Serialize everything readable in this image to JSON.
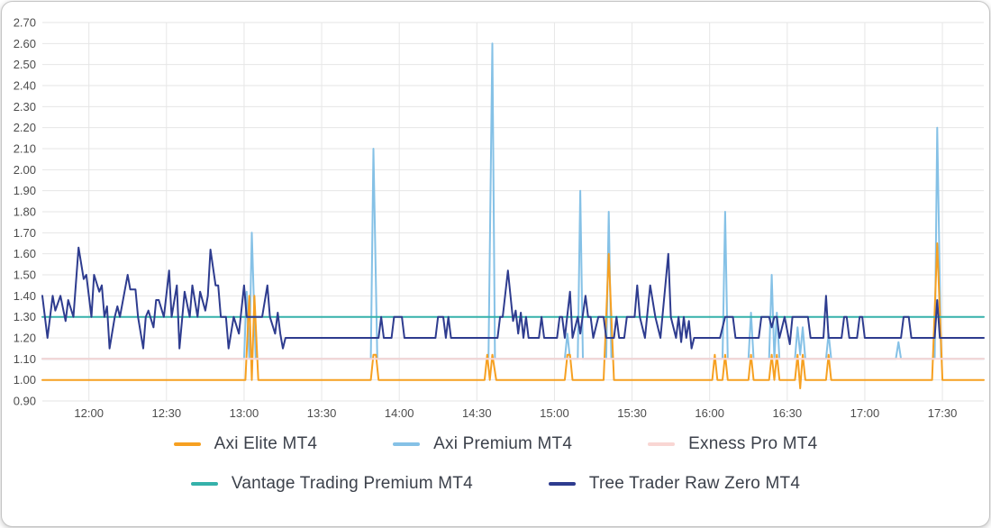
{
  "canvas": {
    "background": "#ffffff",
    "card_border_color": "#c4c4c4",
    "grid_color": "#e6e6e6",
    "tick_text_color": "#4c4c4c",
    "legend_text_color": "#3c414b"
  },
  "chart_data": {
    "type": "line",
    "title": "",
    "xlabel": "",
    "ylabel": "",
    "grid": true,
    "x_axis": {
      "unit": "time of day",
      "domain_minutes": [
        702,
        1066
      ],
      "tick_minutes": [
        720,
        750,
        780,
        810,
        840,
        870,
        900,
        930,
        960,
        990,
        1020,
        1050
      ],
      "tick_labels": [
        "12:00",
        "12:30",
        "13:00",
        "13:30",
        "14:00",
        "14:30",
        "15:00",
        "15:30",
        "16:00",
        "16:30",
        "17:00",
        "17:30"
      ]
    },
    "y_axis": {
      "min": 0.9,
      "max": 2.7,
      "step": 0.1,
      "tick_labels": [
        "0.90",
        "1.00",
        "1.10",
        "1.20",
        "1.30",
        "1.40",
        "1.50",
        "1.60",
        "1.70",
        "1.80",
        "1.90",
        "2.00",
        "2.10",
        "2.20",
        "2.30",
        "2.40",
        "2.50",
        "2.60",
        "2.70"
      ]
    },
    "legend": {
      "position": "bottom",
      "rows": [
        [
          0,
          1,
          2
        ],
        [
          3,
          4
        ]
      ]
    },
    "draw_order": [
      1,
      0,
      2,
      3,
      4
    ],
    "series": [
      {
        "name": "Axi Elite MT4",
        "color": "#f6a021",
        "baseline": 1.0,
        "points": [
          [
            702,
            1.0
          ],
          [
            780.5,
            1.0
          ],
          [
            782,
            1.4
          ],
          [
            783,
            1.0
          ],
          [
            784,
            1.4
          ],
          [
            785.5,
            1.0
          ],
          [
            829,
            1.0
          ],
          [
            830,
            1.12
          ],
          [
            831,
            1.12
          ],
          [
            832,
            1.0
          ],
          [
            873,
            1.0
          ],
          [
            874,
            1.12
          ],
          [
            875,
            1.0
          ],
          [
            876,
            1.12
          ],
          [
            877.5,
            1.0
          ],
          [
            904,
            1.0
          ],
          [
            905,
            1.12
          ],
          [
            906,
            1.12
          ],
          [
            907,
            1.0
          ],
          [
            919,
            1.0
          ],
          [
            921,
            1.6
          ],
          [
            923,
            1.0
          ],
          [
            961,
            1.0
          ],
          [
            962,
            1.12
          ],
          [
            963,
            1.0
          ],
          [
            965,
            1.0
          ],
          [
            966,
            1.12
          ],
          [
            967,
            1.0
          ],
          [
            975,
            1.0
          ],
          [
            976,
            1.12
          ],
          [
            977,
            1.0
          ],
          [
            983,
            1.0
          ],
          [
            984,
            1.12
          ],
          [
            985,
            1.0
          ],
          [
            986,
            1.12
          ],
          [
            987,
            1.0
          ],
          [
            993,
            1.0
          ],
          [
            994,
            1.12
          ],
          [
            995,
            0.96
          ],
          [
            996,
            1.12
          ],
          [
            997,
            1.0
          ],
          [
            1005,
            1.0
          ],
          [
            1006,
            1.12
          ],
          [
            1007,
            1.0
          ],
          [
            1046,
            1.0
          ],
          [
            1048,
            1.65
          ],
          [
            1050,
            1.0
          ],
          [
            1066,
            1.0
          ]
        ]
      },
      {
        "name": "Axi Premium MT4",
        "color": "#85c1e6",
        "baseline": 1.1,
        "points": [
          [
            702,
            1.1
          ],
          [
            780,
            1.1
          ],
          [
            781,
            1.42
          ],
          [
            782,
            1.1
          ],
          [
            783,
            1.7
          ],
          [
            784.5,
            1.1
          ],
          [
            829,
            1.1
          ],
          [
            830,
            2.1
          ],
          [
            831.5,
            1.1
          ],
          [
            874.5,
            1.1
          ],
          [
            876,
            2.6
          ],
          [
            877,
            1.1
          ],
          [
            904,
            1.1
          ],
          [
            905,
            1.22
          ],
          [
            906,
            1.1
          ],
          [
            909,
            1.1
          ],
          [
            910,
            1.9
          ],
          [
            911,
            1.1
          ],
          [
            920,
            1.1
          ],
          [
            921,
            1.8
          ],
          [
            922,
            1.1
          ],
          [
            965,
            1.1
          ],
          [
            966,
            1.8
          ],
          [
            967,
            1.1
          ],
          [
            975,
            1.1
          ],
          [
            976,
            1.32
          ],
          [
            977,
            1.1
          ],
          [
            983,
            1.1
          ],
          [
            984,
            1.5
          ],
          [
            985,
            1.1
          ],
          [
            986,
            1.32
          ],
          [
            987,
            1.1
          ],
          [
            993,
            1.1
          ],
          [
            994,
            1.25
          ],
          [
            995,
            1.12
          ],
          [
            996,
            1.25
          ],
          [
            997,
            1.1
          ],
          [
            1005,
            1.1
          ],
          [
            1006,
            1.22
          ],
          [
            1007,
            1.1
          ],
          [
            1032,
            1.1
          ],
          [
            1033,
            1.18
          ],
          [
            1034,
            1.1
          ],
          [
            1047,
            1.1
          ],
          [
            1048,
            2.2
          ],
          [
            1049.5,
            1.1
          ],
          [
            1066,
            1.1
          ]
        ]
      },
      {
        "name": "Exness Pro MT4",
        "color": "#f9d6d3",
        "baseline": 1.1,
        "points": [
          [
            702,
            1.1
          ],
          [
            1066,
            1.1
          ]
        ]
      },
      {
        "name": "Vantage Trading Premium MT4",
        "color": "#35b1aa",
        "baseline": 1.3,
        "points": [
          [
            702,
            1.3
          ],
          [
            1066,
            1.3
          ]
        ]
      },
      {
        "name": "Tree Trader Raw Zero MT4",
        "color": "#2e3c8f",
        "baseline": 1.2,
        "points": [
          [
            702,
            1.4
          ],
          [
            704,
            1.2
          ],
          [
            706,
            1.4
          ],
          [
            707,
            1.33
          ],
          [
            709,
            1.4
          ],
          [
            711,
            1.28
          ],
          [
            712,
            1.38
          ],
          [
            714,
            1.3
          ],
          [
            716,
            1.63
          ],
          [
            718,
            1.48
          ],
          [
            719,
            1.5
          ],
          [
            721,
            1.3
          ],
          [
            722,
            1.5
          ],
          [
            724,
            1.42
          ],
          [
            725,
            1.45
          ],
          [
            726,
            1.3
          ],
          [
            727,
            1.35
          ],
          [
            728,
            1.15
          ],
          [
            730,
            1.3
          ],
          [
            731,
            1.35
          ],
          [
            732,
            1.3
          ],
          [
            735,
            1.5
          ],
          [
            736,
            1.43
          ],
          [
            738,
            1.43
          ],
          [
            739,
            1.3
          ],
          [
            741,
            1.15
          ],
          [
            742,
            1.3
          ],
          [
            743,
            1.33
          ],
          [
            745,
            1.25
          ],
          [
            746,
            1.38
          ],
          [
            747,
            1.38
          ],
          [
            749,
            1.3
          ],
          [
            751,
            1.52
          ],
          [
            752,
            1.3
          ],
          [
            754,
            1.45
          ],
          [
            755,
            1.15
          ],
          [
            757,
            1.42
          ],
          [
            759,
            1.3
          ],
          [
            760,
            1.45
          ],
          [
            762,
            1.3
          ],
          [
            763,
            1.42
          ],
          [
            765,
            1.33
          ],
          [
            766,
            1.4
          ],
          [
            767,
            1.62
          ],
          [
            769,
            1.45
          ],
          [
            770,
            1.45
          ],
          [
            771,
            1.3
          ],
          [
            773,
            1.3
          ],
          [
            774,
            1.15
          ],
          [
            776,
            1.3
          ],
          [
            778,
            1.22
          ],
          [
            780,
            1.45
          ],
          [
            781,
            1.3
          ],
          [
            787,
            1.3
          ],
          [
            789,
            1.45
          ],
          [
            790,
            1.3
          ],
          [
            792,
            1.22
          ],
          [
            793,
            1.32
          ],
          [
            794,
            1.22
          ],
          [
            795,
            1.15
          ],
          [
            796,
            1.2
          ],
          [
            832,
            1.2
          ],
          [
            833,
            1.3
          ],
          [
            834,
            1.2
          ],
          [
            837,
            1.2
          ],
          [
            838,
            1.3
          ],
          [
            841,
            1.3
          ],
          [
            842,
            1.2
          ],
          [
            854,
            1.2
          ],
          [
            855,
            1.3
          ],
          [
            857,
            1.3
          ],
          [
            858,
            1.2
          ],
          [
            859,
            1.3
          ],
          [
            860,
            1.2
          ],
          [
            878,
            1.2
          ],
          [
            879,
            1.3
          ],
          [
            880,
            1.3
          ],
          [
            882,
            1.52
          ],
          [
            884,
            1.28
          ],
          [
            885,
            1.33
          ],
          [
            886,
            1.22
          ],
          [
            887,
            1.32
          ],
          [
            888,
            1.2
          ],
          [
            889,
            1.3
          ],
          [
            890,
            1.2
          ],
          [
            894,
            1.2
          ],
          [
            895,
            1.3
          ],
          [
            896,
            1.2
          ],
          [
            901,
            1.2
          ],
          [
            902,
            1.3
          ],
          [
            903,
            1.3
          ],
          [
            904,
            1.2
          ],
          [
            906,
            1.42
          ],
          [
            907,
            1.2
          ],
          [
            909,
            1.3
          ],
          [
            910,
            1.22
          ],
          [
            912,
            1.4
          ],
          [
            913,
            1.3
          ],
          [
            914,
            1.3
          ],
          [
            915,
            1.2
          ],
          [
            917,
            1.3
          ],
          [
            919,
            1.3
          ],
          [
            920,
            1.2
          ],
          [
            923,
            1.2
          ],
          [
            924,
            1.3
          ],
          [
            925,
            1.2
          ],
          [
            927,
            1.2
          ],
          [
            928,
            1.3
          ],
          [
            931,
            1.3
          ],
          [
            932,
            1.45
          ],
          [
            933,
            1.3
          ],
          [
            935,
            1.2
          ],
          [
            937,
            1.45
          ],
          [
            939,
            1.3
          ],
          [
            941,
            1.2
          ],
          [
            944,
            1.6
          ],
          [
            945,
            1.3
          ],
          [
            947,
            1.2
          ],
          [
            948,
            1.3
          ],
          [
            949,
            1.18
          ],
          [
            950,
            1.3
          ],
          [
            951,
            1.2
          ],
          [
            952,
            1.28
          ],
          [
            953,
            1.15
          ],
          [
            954,
            1.2
          ],
          [
            964,
            1.2
          ],
          [
            965,
            1.25
          ],
          [
            966,
            1.3
          ],
          [
            969,
            1.3
          ],
          [
            970,
            1.2
          ],
          [
            979,
            1.2
          ],
          [
            980,
            1.3
          ],
          [
            983,
            1.3
          ],
          [
            984,
            1.25
          ],
          [
            985,
            1.3
          ],
          [
            986,
            1.3
          ],
          [
            987,
            1.2
          ],
          [
            989,
            1.3
          ],
          [
            991,
            1.17
          ],
          [
            992,
            1.3
          ],
          [
            998,
            1.3
          ],
          [
            999,
            1.2
          ],
          [
            1004,
            1.2
          ],
          [
            1005,
            1.4
          ],
          [
            1006,
            1.2
          ],
          [
            1011,
            1.2
          ],
          [
            1012,
            1.3
          ],
          [
            1013,
            1.3
          ],
          [
            1014,
            1.2
          ],
          [
            1017,
            1.2
          ],
          [
            1018,
            1.3
          ],
          [
            1019,
            1.3
          ],
          [
            1020,
            1.2
          ],
          [
            1034,
            1.2
          ],
          [
            1035,
            1.3
          ],
          [
            1037,
            1.3
          ],
          [
            1038,
            1.2
          ],
          [
            1047,
            1.2
          ],
          [
            1048,
            1.38
          ],
          [
            1049,
            1.2
          ],
          [
            1066,
            1.2
          ]
        ]
      }
    ]
  }
}
